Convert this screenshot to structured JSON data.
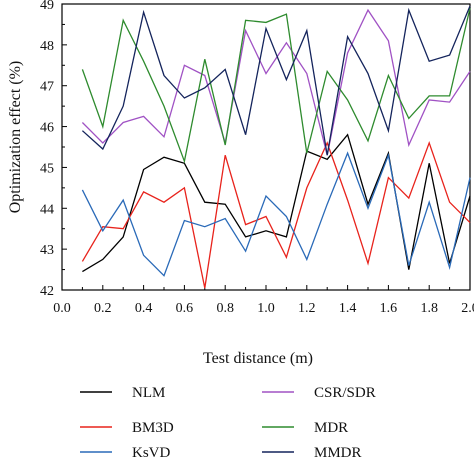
{
  "chart_data": {
    "type": "line",
    "xlabel": "Test distance (m)",
    "ylabel": "Optimization effect (%)",
    "xlim": [
      0.0,
      2.0
    ],
    "ylim": [
      42,
      49
    ],
    "xticks": [
      "0.0",
      "0.2",
      "0.4",
      "0.6",
      "0.8",
      "1.0",
      "1.2",
      "1.4",
      "1.6",
      "1.8",
      "2.0"
    ],
    "yticks": [
      "42",
      "43",
      "44",
      "45",
      "46",
      "47",
      "48",
      "49"
    ],
    "grid": false,
    "legend_position": "bottom, two columns",
    "x": [
      0.1,
      0.2,
      0.3,
      0.4,
      0.5,
      0.6,
      0.7,
      0.8,
      0.9,
      1.0,
      1.1,
      1.2,
      1.3,
      1.4,
      1.5,
      1.6,
      1.7,
      1.8,
      1.9,
      2.0
    ],
    "series": [
      {
        "name": "NLM",
        "color": "#000000",
        "values": [
          42.45,
          42.75,
          43.3,
          44.95,
          45.25,
          45.1,
          44.15,
          44.1,
          43.3,
          43.45,
          43.3,
          45.4,
          45.2,
          45.8,
          44.1,
          45.35,
          42.5,
          45.1,
          42.65,
          44.3
        ]
      },
      {
        "name": "BM3D",
        "color": "#e8231c",
        "values": [
          42.7,
          43.55,
          43.5,
          44.4,
          44.15,
          44.5,
          42.05,
          45.3,
          43.6,
          43.8,
          42.8,
          44.5,
          45.6,
          44.2,
          42.65,
          44.75,
          44.25,
          45.6,
          44.15,
          43.65
        ]
      },
      {
        "name": "KsVD",
        "color": "#2a6ab8",
        "values": [
          44.45,
          43.45,
          44.2,
          42.85,
          42.35,
          43.7,
          43.55,
          43.75,
          42.95,
          44.3,
          43.8,
          42.75,
          44.1,
          45.35,
          44.0,
          45.3,
          42.6,
          44.15,
          42.55,
          44.75
        ]
      },
      {
        "name": "CSR/SDR",
        "color": "#a052c4",
        "values": [
          46.1,
          45.6,
          46.1,
          46.25,
          45.75,
          47.5,
          47.25,
          45.6,
          48.35,
          47.3,
          48.05,
          47.3,
          45.3,
          47.8,
          48.85,
          48.1,
          45.55,
          46.65,
          46.6,
          47.35
        ]
      },
      {
        "name": "MDR",
        "color": "#2e8b2e",
        "values": [
          47.4,
          46.0,
          48.6,
          47.6,
          46.5,
          45.15,
          47.65,
          45.55,
          48.6,
          48.55,
          48.75,
          45.35,
          47.35,
          46.65,
          45.65,
          47.25,
          46.2,
          46.75,
          46.75,
          48.9
        ]
      },
      {
        "name": "MMDR",
        "color": "#14245c",
        "values": [
          45.9,
          45.45,
          46.5,
          48.8,
          47.25,
          46.7,
          46.95,
          47.4,
          45.8,
          48.4,
          47.15,
          48.35,
          45.3,
          48.2,
          47.3,
          45.9,
          48.85,
          47.6,
          47.75,
          48.95
        ]
      }
    ]
  }
}
